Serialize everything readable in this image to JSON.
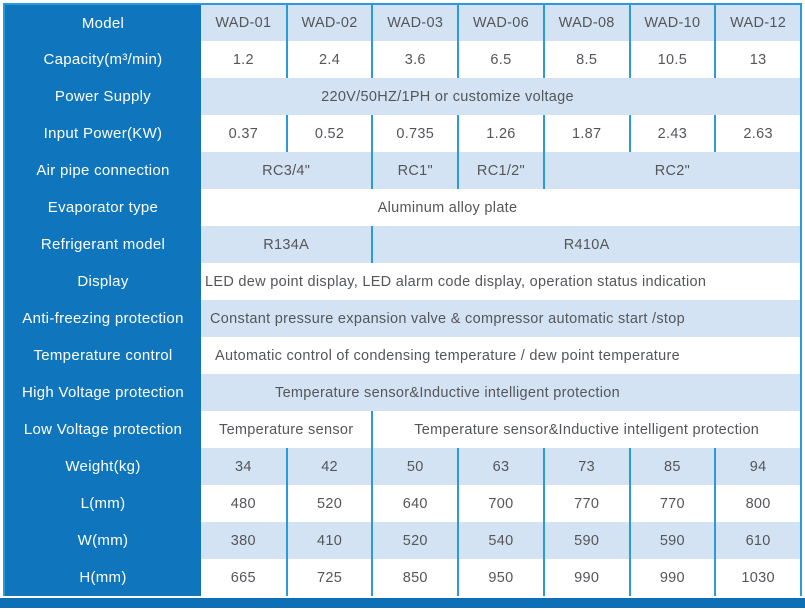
{
  "colors": {
    "label_column_blue": "#0f76bd",
    "stripe_light_blue": "#d4e3f3",
    "gridline_blue": "#2b9ad8",
    "bottom_bar_blue": "#0d6fb5",
    "cell_text": "#54565a"
  },
  "table": {
    "rows": [
      {
        "label": "Model",
        "cells": [
          "WAD-01",
          "WAD-02",
          "WAD-03",
          "WAD-06",
          "WAD-08",
          "WAD-10",
          "WAD-12"
        ]
      },
      {
        "label": "Capacity(m³/min)",
        "cells": [
          "1.2",
          "2.4",
          "3.6",
          "6.5",
          "8.5",
          "10.5",
          "13"
        ]
      },
      {
        "label": "Power Supply",
        "merged": "220V/50HZ/1PH or customize voltage"
      },
      {
        "label": "Input Power(KW)",
        "cells": [
          "0.37",
          "0.52",
          "0.735",
          "1.26",
          "1.87",
          "2.43",
          "2.63"
        ]
      },
      {
        "label": "Air pipe connection",
        "groups": [
          {
            "text": "RC3/4\"",
            "span": 2
          },
          {
            "text": "RC1\"",
            "span": 1
          },
          {
            "text": "RC1/2\"",
            "span": 1
          },
          {
            "text": "RC2\"",
            "span": 3
          }
        ]
      },
      {
        "label": "Evaporator type",
        "merged": "Aluminum alloy plate"
      },
      {
        "label": "Refrigerant model",
        "groups": [
          {
            "text": "R134A",
            "span": 2
          },
          {
            "text": "R410A",
            "span": 5
          }
        ]
      },
      {
        "label": "Display",
        "merged": "LED dew point display, LED alarm code display, operation status indication"
      },
      {
        "label": "Anti-freezing protection",
        "merged": "Constant pressure expansion valve & compressor automatic start /stop"
      },
      {
        "label": "Temperature control",
        "merged": "Automatic control of condensing temperature / dew point temperature"
      },
      {
        "label": "High Voltage protection",
        "merged": "Temperature sensor&Inductive intelligent protection"
      },
      {
        "label": "Low Voltage protection",
        "groups": [
          {
            "text": "Temperature sensor",
            "span": 2
          },
          {
            "text": "Temperature sensor&Inductive intelligent protection",
            "span": 5
          }
        ]
      },
      {
        "label": "Weight(kg)",
        "cells": [
          "34",
          "42",
          "50",
          "63",
          "73",
          "85",
          "94"
        ]
      },
      {
        "label": "L(mm)",
        "cells": [
          "480",
          "520",
          "640",
          "700",
          "770",
          "770",
          "800"
        ]
      },
      {
        "label": "W(mm)",
        "cells": [
          "380",
          "410",
          "520",
          "540",
          "590",
          "590",
          "610"
        ]
      },
      {
        "label": "H(mm)",
        "cells": [
          "665",
          "725",
          "850",
          "950",
          "990",
          "990",
          "1030"
        ]
      }
    ]
  }
}
